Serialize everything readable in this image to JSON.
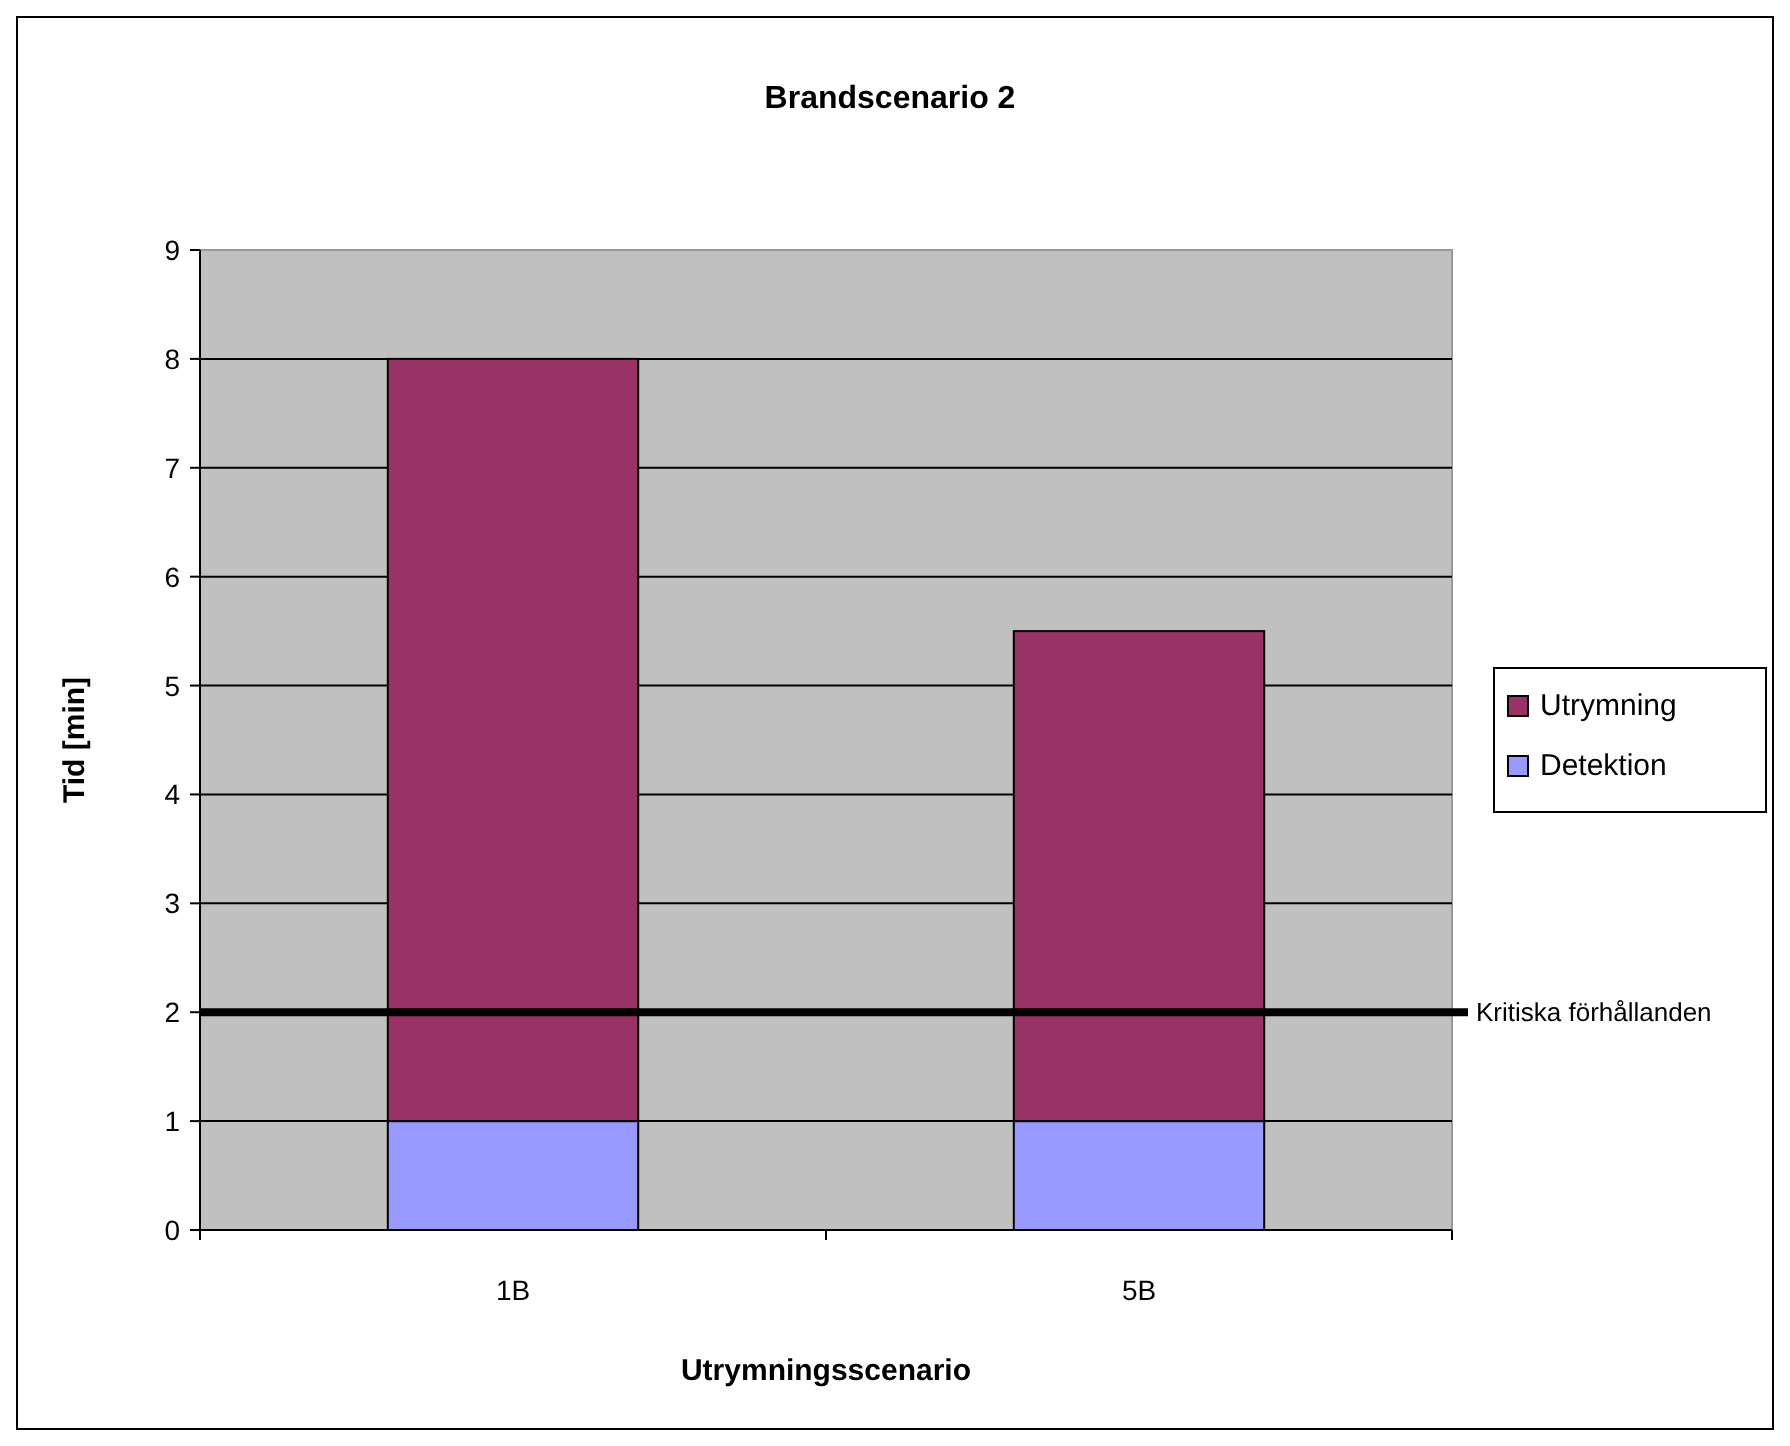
{
  "chart_data": {
    "type": "bar",
    "title": "Brandscenario 2",
    "xlabel": "Utrymningsscenario",
    "ylabel": "Tid [min]",
    "categories": [
      "1B",
      "5B"
    ],
    "series": [
      {
        "name": "Detektion",
        "color": "#9999ff",
        "values": [
          1,
          1
        ]
      },
      {
        "name": "Utrymning",
        "color": "#993366",
        "values": [
          7,
          4.5
        ]
      }
    ],
    "stacked": true,
    "ylim": [
      0,
      9
    ],
    "yticks": [
      0,
      1,
      2,
      3,
      4,
      5,
      6,
      7,
      8,
      9
    ],
    "grid": "y",
    "legend": "right",
    "ref_lines": [
      {
        "axis": "y",
        "value": 2,
        "label": "Kritiska förhållanden",
        "color": "#000000"
      }
    ]
  }
}
